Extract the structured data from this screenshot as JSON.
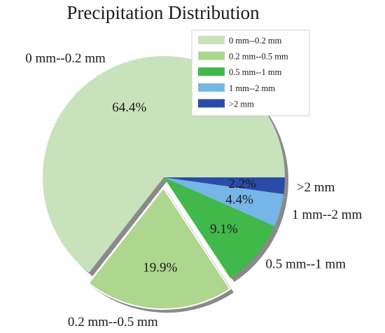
{
  "chart_data": {
    "type": "pie",
    "title": "Precipitation Distribution",
    "slices": [
      {
        "label": "0 mm--0.2 mm",
        "value": 64.4,
        "value_label": "64.4%",
        "color": "#c8e3bc",
        "exploded": false
      },
      {
        "label": "0.2 mm--0.5 mm",
        "value": 19.9,
        "value_label": "19.9%",
        "color": "#aed68e",
        "exploded": true
      },
      {
        "label": "0.5 mm--1 mm",
        "value": 9.1,
        "value_label": "9.1%",
        "color": "#41b84a",
        "exploded": false
      },
      {
        "label": "1 mm--2 mm",
        "value": 4.4,
        "value_label": "4.4%",
        "color": "#75b6e6",
        "exploded": false
      },
      {
        "label": ">2 mm",
        "value": 2.2,
        "value_label": "2.2%",
        "color": "#2a4ca8",
        "exploded": false
      }
    ],
    "start_angle_deg": 0,
    "direction": "clockwise",
    "shadow": true,
    "legend": {
      "position": "top-right",
      "entries": [
        "0 mm--0.2 mm",
        "0.2 mm--0.5 mm",
        "0.5 mm--1 mm",
        "1 mm--2 mm",
        ">2 mm"
      ]
    }
  }
}
